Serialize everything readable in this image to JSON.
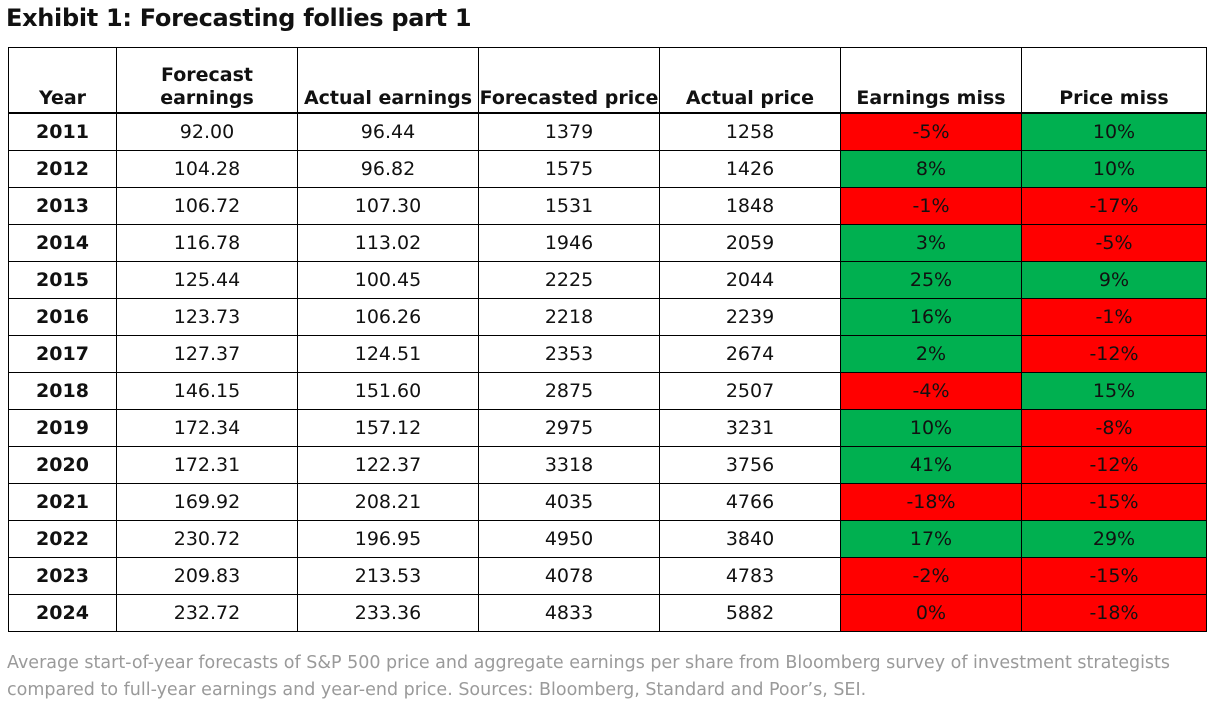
{
  "title": "Exhibit 1: Forecasting follies part 1",
  "colors": {
    "positive": "#00b050",
    "negative": "#ff0000",
    "caption": "#9a9a9a"
  },
  "headers": {
    "year": "Year",
    "forecast_earnings": "Forecast earnings",
    "actual_earnings": "Actual earnings",
    "forecasted_price": "Forecasted price",
    "actual_price": "Actual price",
    "earnings_miss": "Earnings miss",
    "price_miss": "Price miss"
  },
  "rows": [
    [
      "2011",
      "92.00",
      "96.44",
      "1379",
      "1258",
      "-5%",
      "10%"
    ],
    [
      "2012",
      "104.28",
      "96.82",
      "1575",
      "1426",
      "8%",
      "10%"
    ],
    [
      "2013",
      "106.72",
      "107.30",
      "1531",
      "1848",
      "-1%",
      "-17%"
    ],
    [
      "2014",
      "116.78",
      "113.02",
      "1946",
      "2059",
      "3%",
      "-5%"
    ],
    [
      "2015",
      "125.44",
      "100.45",
      "2225",
      "2044",
      "25%",
      "9%"
    ],
    [
      "2016",
      "123.73",
      "106.26",
      "2218",
      "2239",
      "16%",
      "-1%"
    ],
    [
      "2017",
      "127.37",
      "124.51",
      "2353",
      "2674",
      "2%",
      "-12%"
    ],
    [
      "2018",
      "146.15",
      "151.60",
      "2875",
      "2507",
      "-4%",
      "15%"
    ],
    [
      "2019",
      "172.34",
      "157.12",
      "2975",
      "3231",
      "10%",
      "-8%"
    ],
    [
      "2020",
      "172.31",
      "122.37",
      "3318",
      "3756",
      "41%",
      "-12%"
    ],
    [
      "2021",
      "169.92",
      "208.21",
      "4035",
      "4766",
      "-18%",
      "-15%"
    ],
    [
      "2022",
      "230.72",
      "196.95",
      "4950",
      "3840",
      "17%",
      "29%"
    ],
    [
      "2023",
      "209.83",
      "213.53",
      "4078",
      "4783",
      "-2%",
      "-15%"
    ],
    [
      "2024",
      "232.72",
      "233.36",
      "4833",
      "5882",
      "0%",
      "-18%"
    ]
  ],
  "caption": "Average start-of-year forecasts of S&P 500 price and aggregate earnings per share from Bloomberg survey of investment strategists compared to full-year earnings and year-end price. Sources: Bloomberg, Standard and Poor’s, SEI."
}
